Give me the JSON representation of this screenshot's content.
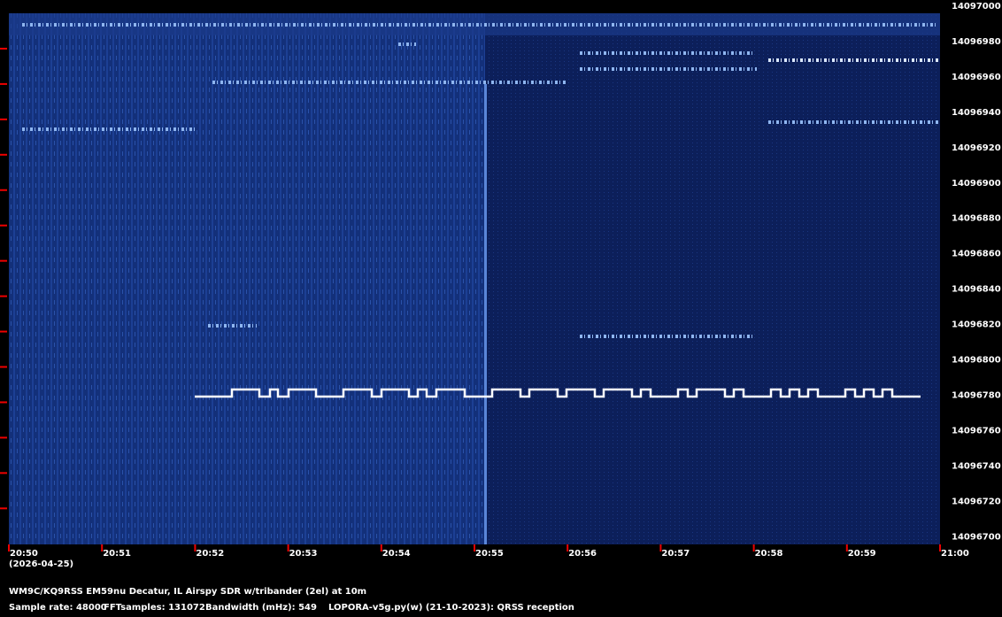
{
  "frequency_labels": [
    "14097000",
    "14096980",
    "14096960",
    "14096940",
    "14096920",
    "14096900",
    "14096880",
    "14096860",
    "14096840",
    "14096820",
    "14096800",
    "14096780",
    "14096760",
    "14096740",
    "14096720",
    "14096700"
  ],
  "time_labels": [
    "20:50",
    "20:51",
    "20:52",
    "20:53",
    "20:54",
    "20:55",
    "20:56",
    "20:57",
    "20:58",
    "20:59",
    "21:00"
  ],
  "date": "(2026-04-25)",
  "footer": {
    "station": "WM9C/KQ9RSS EM59nu Decatur, IL  Airspy SDR w/tribander (2el) at 10m",
    "sample_rate": "Sample rate: 48000",
    "fft_samples": "FFTsamples: 131072",
    "bandwidth": "Bandwidth (mHz): 549",
    "software": "LOPORA-v5g.py(w) (21-10-2023): QRSS reception"
  }
}
